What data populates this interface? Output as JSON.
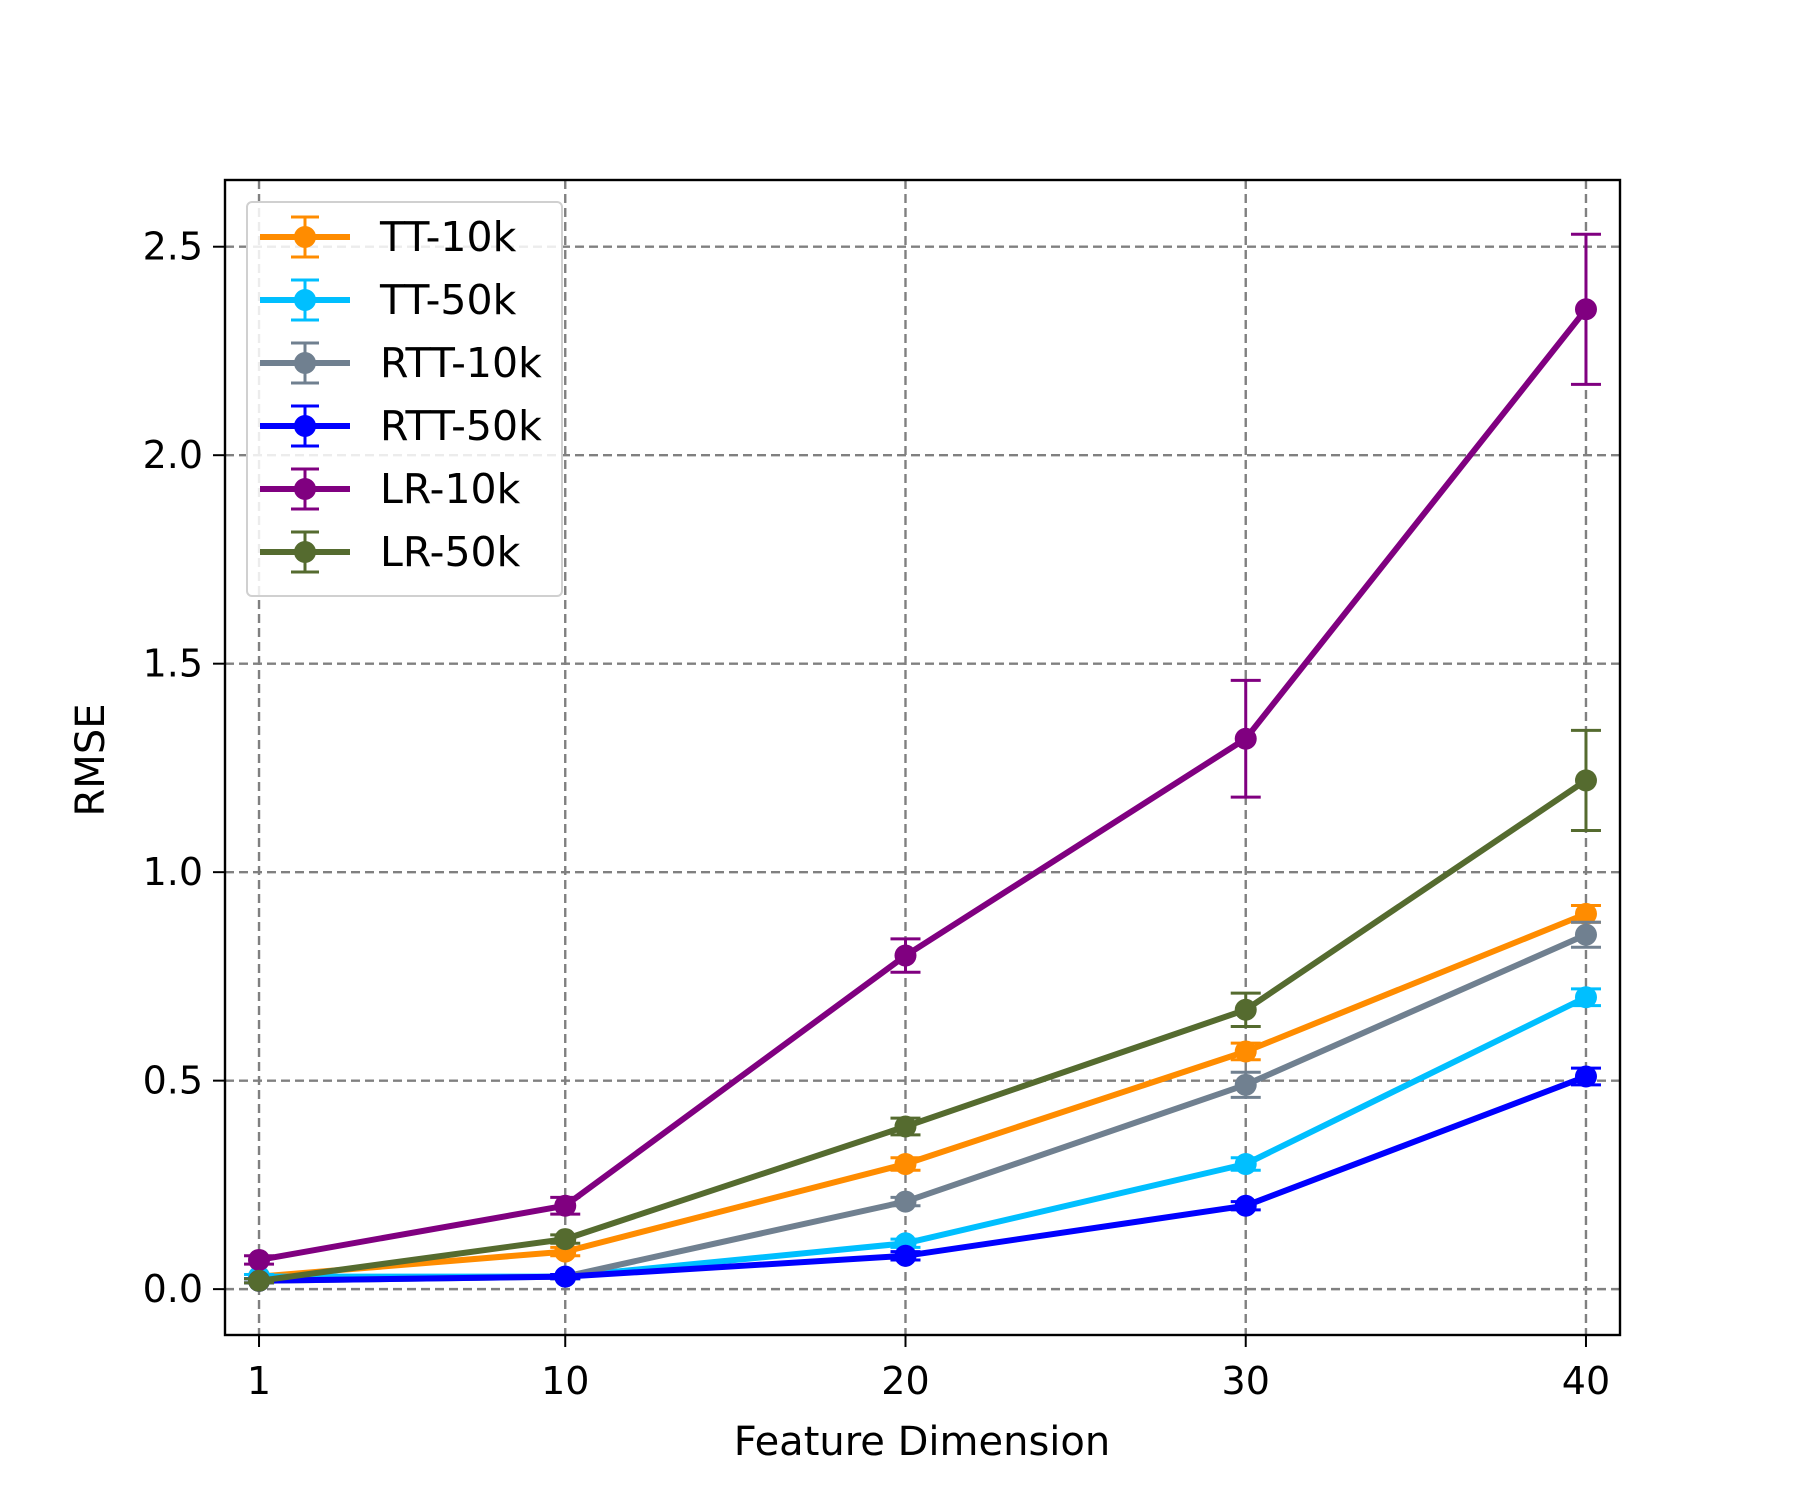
{
  "chart_data": {
    "type": "line",
    "title": "",
    "xlabel": "Feature Dimension",
    "ylabel": "RMSE",
    "x": [
      1,
      10,
      20,
      30,
      40
    ],
    "xtick_labels": [
      "1",
      "10",
      "20",
      "30",
      "40"
    ],
    "ytick_values": [
      0.0,
      0.5,
      1.0,
      1.5,
      2.0,
      2.5
    ],
    "ytick_labels": [
      "0.0",
      "0.5",
      "1.0",
      "1.5",
      "2.0",
      "2.5"
    ],
    "xlim": [
      0,
      41
    ],
    "ylim": [
      -0.11,
      2.66
    ],
    "grid": true,
    "legend_position": "upper-left",
    "series": [
      {
        "name": "TT-10k",
        "color": "#ff8c00",
        "values": [
          0.03,
          0.09,
          0.3,
          0.57,
          0.9
        ],
        "errors": [
          0.005,
          0.01,
          0.015,
          0.02,
          0.02
        ]
      },
      {
        "name": "TT-50k",
        "color": "#00bfff",
        "values": [
          0.03,
          0.03,
          0.11,
          0.3,
          0.7
        ],
        "errors": [
          0.005,
          0.005,
          0.01,
          0.015,
          0.02
        ]
      },
      {
        "name": "RTT-10k",
        "color": "#708090",
        "values": [
          0.02,
          0.03,
          0.21,
          0.49,
          0.85
        ],
        "errors": [
          0.005,
          0.005,
          0.01,
          0.03,
          0.03
        ]
      },
      {
        "name": "RTT-50k",
        "color": "#0000ff",
        "values": [
          0.02,
          0.03,
          0.08,
          0.2,
          0.51
        ],
        "errors": [
          0.005,
          0.005,
          0.01,
          0.01,
          0.02
        ]
      },
      {
        "name": "LR-10k",
        "color": "#800080",
        "values": [
          0.07,
          0.2,
          0.8,
          1.32,
          2.35
        ],
        "errors": [
          0.01,
          0.02,
          0.04,
          0.14,
          0.18
        ]
      },
      {
        "name": "LR-50k",
        "color": "#556b2f",
        "values": [
          0.02,
          0.12,
          0.39,
          0.67,
          1.22
        ],
        "errors": [
          0.005,
          0.01,
          0.02,
          0.04,
          0.12
        ]
      }
    ]
  }
}
